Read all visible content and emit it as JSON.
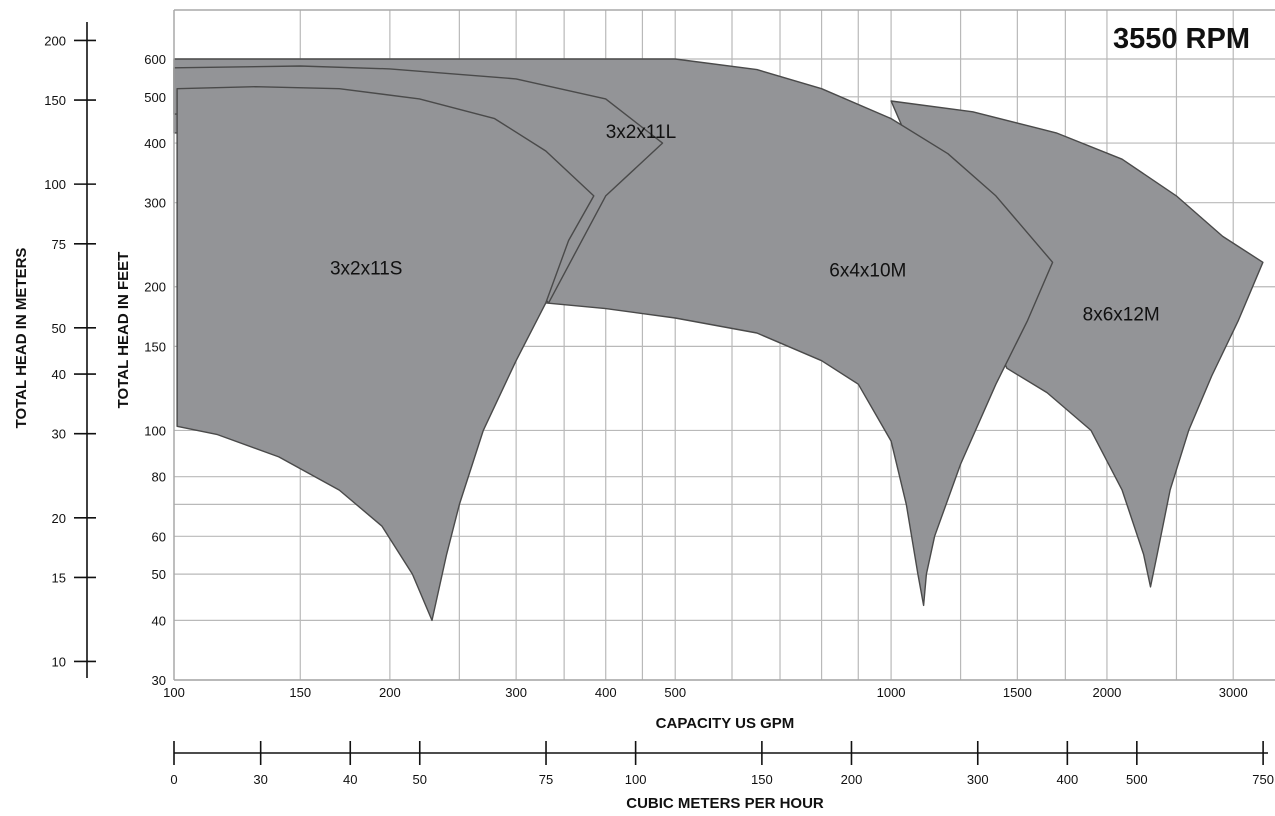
{
  "chart_data": {
    "type": "area",
    "title": "3550 RPM",
    "xlabel": "CAPACITY US GPM",
    "ylabel": "TOTAL HEAD IN FEET",
    "ylabel_secondary": "TOTAL HEAD IN METERS",
    "xlabel_secondary": "CUBIC METERS PER HOUR",
    "x_scale": "log",
    "y_scale": "log",
    "xlim": [
      100,
      3600
    ],
    "ylim": [
      30,
      760
    ],
    "grid": true,
    "x_ticks": [
      100,
      150,
      200,
      300,
      400,
      500,
      1000,
      1500,
      2000,
      3000
    ],
    "y_ticks": [
      30,
      40,
      50,
      60,
      80,
      100,
      150,
      200,
      300,
      400,
      500,
      600
    ],
    "x_minor_grid": [
      250,
      350,
      450,
      600,
      700,
      800,
      900,
      1250,
      1750,
      2500
    ],
    "y_minor_grid": [
      70
    ],
    "meters_ticks": [
      10,
      15,
      20,
      30,
      40,
      50,
      75,
      100,
      150,
      200
    ],
    "cmh_ticks": [
      0,
      30,
      40,
      50,
      75,
      100,
      150,
      200,
      300,
      400,
      500,
      750
    ],
    "series": [
      {
        "name": "8x6x12M",
        "label_at": [
          1850,
          170
        ],
        "points": [
          [
            1000,
            490
          ],
          [
            1300,
            465
          ],
          [
            1700,
            420
          ],
          [
            2100,
            370
          ],
          [
            2500,
            310
          ],
          [
            2900,
            255
          ],
          [
            3300,
            225
          ],
          [
            3050,
            170
          ],
          [
            2800,
            130
          ],
          [
            2600,
            100
          ],
          [
            2450,
            75
          ],
          [
            2350,
            55
          ],
          [
            2300,
            47
          ],
          [
            2250,
            55
          ],
          [
            2100,
            75
          ],
          [
            1900,
            100
          ],
          [
            1650,
            120
          ],
          [
            1450,
            135
          ]
        ]
      },
      {
        "name": "6x4x10M",
        "label_at": [
          820,
          210
        ],
        "points": [
          [
            100,
            600
          ],
          [
            500,
            600
          ],
          [
            650,
            570
          ],
          [
            800,
            520
          ],
          [
            1000,
            450
          ],
          [
            1200,
            380
          ],
          [
            1400,
            310
          ],
          [
            1680,
            225
          ],
          [
            1550,
            170
          ],
          [
            1400,
            125
          ],
          [
            1250,
            85
          ],
          [
            1150,
            60
          ],
          [
            1120,
            50
          ],
          [
            1110,
            43
          ],
          [
            1090,
            50
          ],
          [
            1050,
            70
          ],
          [
            1000,
            95
          ],
          [
            900,
            125
          ],
          [
            800,
            140
          ],
          [
            650,
            160
          ],
          [
            500,
            172
          ],
          [
            400,
            180
          ],
          [
            330,
            185
          ],
          [
            300,
            200
          ],
          [
            250,
            300
          ],
          [
            200,
            420
          ],
          [
            100,
            420
          ]
        ]
      },
      {
        "name": "3x2x11L",
        "label_at": [
          400,
          410
        ],
        "points": [
          [
            100,
            575
          ],
          [
            150,
            580
          ],
          [
            200,
            572
          ],
          [
            300,
            545
          ],
          [
            400,
            495
          ],
          [
            480,
            400
          ],
          [
            400,
            310
          ],
          [
            333,
            185
          ],
          [
            310,
            210
          ],
          [
            280,
            280
          ],
          [
            240,
            400
          ],
          [
            180,
            460
          ],
          [
            100,
            460
          ]
        ]
      },
      {
        "name": "3x2x11S",
        "label_at": [
          165,
          212
        ],
        "points": [
          [
            101,
            520
          ],
          [
            130,
            525
          ],
          [
            170,
            520
          ],
          [
            220,
            495
          ],
          [
            280,
            450
          ],
          [
            330,
            385
          ],
          [
            385,
            310
          ],
          [
            355,
            250
          ],
          [
            330,
            185
          ],
          [
            300,
            140
          ],
          [
            270,
            100
          ],
          [
            250,
            70
          ],
          [
            240,
            55
          ],
          [
            229,
            40
          ],
          [
            215,
            50
          ],
          [
            195,
            63
          ],
          [
            170,
            75
          ],
          [
            140,
            88
          ],
          [
            115,
            98
          ],
          [
            101,
            102
          ]
        ]
      }
    ]
  }
}
